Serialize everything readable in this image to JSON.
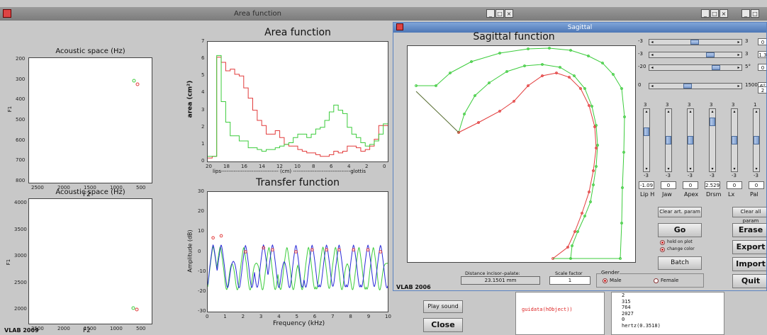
{
  "area_window": {
    "title": "Area function",
    "footer": "VLAB 2009",
    "space_top": {
      "title": "Acoustic space (Hz)",
      "ylabel": "F1",
      "xlabel": "F2",
      "y_ticks": [
        "200",
        "300",
        "400",
        "500",
        "600",
        "700",
        "800"
      ],
      "x_ticks": [
        "2500",
        "2000",
        "1500",
        "1000",
        "500"
      ]
    },
    "space_bottom": {
      "title": "Acoustic space (Hz)",
      "ylabel": "F1",
      "xlabel": "F2",
      "y_ticks": [
        "4000",
        "3500",
        "3000",
        "2500",
        "2000"
      ],
      "x_ticks": [
        "2500",
        "2000",
        "1500",
        "1000",
        "500"
      ]
    },
    "area_plot": {
      "title": "Area function",
      "ylabel": "area (cm²)",
      "y_ticks": [
        "7",
        "6",
        "5",
        "4",
        "3",
        "2",
        "1",
        "0"
      ],
      "x_ticks": [
        "20",
        "18",
        "16",
        "14",
        "12",
        "10",
        "8",
        "6",
        "4",
        "2",
        "0"
      ],
      "xlabel": "lips-------------------------------- (cm) --------------------------------glottis"
    },
    "transfer_plot": {
      "title": "Transfer function",
      "ylabel": "Amplitude (dB)",
      "xlabel": "Frequency (kHz)",
      "y_ticks": [
        "30",
        "20",
        "10",
        "0",
        "-10",
        "-20",
        "-30"
      ],
      "x_ticks": [
        "0",
        "1",
        "2",
        "3",
        "4",
        "5",
        "6",
        "7",
        "8",
        "9",
        "10"
      ]
    },
    "play_sound_label": "Play sound",
    "close_label": "Close"
  },
  "bg_titlebars": {
    "b1": "_□×",
    "b2": "_□"
  },
  "sagittal_window": {
    "title": "Sagittal",
    "plot_title": "Sagittal function",
    "footer": "VLAB 2006",
    "distance_label": "Distance incisor–palate:",
    "distance_value": "23.1501 mm",
    "scale_label": "Scale factor",
    "scale_value": "1",
    "gender_label": "Gender",
    "gender_male": "Male",
    "gender_female": "Female",
    "clear_art_label": "Clear art. param",
    "clear_all_label": "Clear all param",
    "go_label": "Go",
    "hold_label": "hold on plot",
    "change_color_label": "change color",
    "batch_label": "Batch",
    "erase_label": "Erase",
    "export_label": "Export",
    "import_label": "Import",
    "quit_label": "Quit",
    "hsliders": [
      {
        "min": "-3",
        "max": "3",
        "val": "0",
        "frac": 0.5
      },
      {
        "min": "-3",
        "max": "3",
        "val": "1.3",
        "frac": 0.72
      },
      {
        "min": "-20",
        "max": "5°",
        "val": "0",
        "frac": 0.8
      },
      {
        "min": "0",
        "max": "1500",
        "val": "6°",
        "frac": 0.4
      }
    ],
    "extra_val": "2",
    "vsliders": [
      {
        "top": "3",
        "bottom": "-3",
        "value": "-1.09",
        "label": "Lip H",
        "frac": 0.3
      },
      {
        "top": "3",
        "bottom": "-3",
        "value": "0",
        "label": "Jaw",
        "frac": 0.5
      },
      {
        "top": "3",
        "bottom": "-3",
        "value": "0",
        "label": "Apex",
        "frac": 0.5
      },
      {
        "top": "3",
        "bottom": "-3",
        "value": "2.529",
        "label": "Drsm",
        "frac": 0.06
      },
      {
        "top": "3",
        "bottom": "-3",
        "value": "0",
        "label": "Lx",
        "frac": 0.5
      },
      {
        "top": "1",
        "bottom": "-3",
        "value": "0",
        "label": "Pal",
        "frac": 0.5
      }
    ],
    "mid_values": [
      "6°"
    ]
  },
  "console": {
    "text": "guidata(hObject))",
    "lines": [
      "2",
      "315",
      "764",
      "2027",
      "0",
      "hertz(0.3518)"
    ]
  },
  "colors": {
    "red": "#e23b3b",
    "green": "#3ccc3c",
    "blue": "#2a2ad8",
    "title_blue": "#5a82c0"
  }
}
